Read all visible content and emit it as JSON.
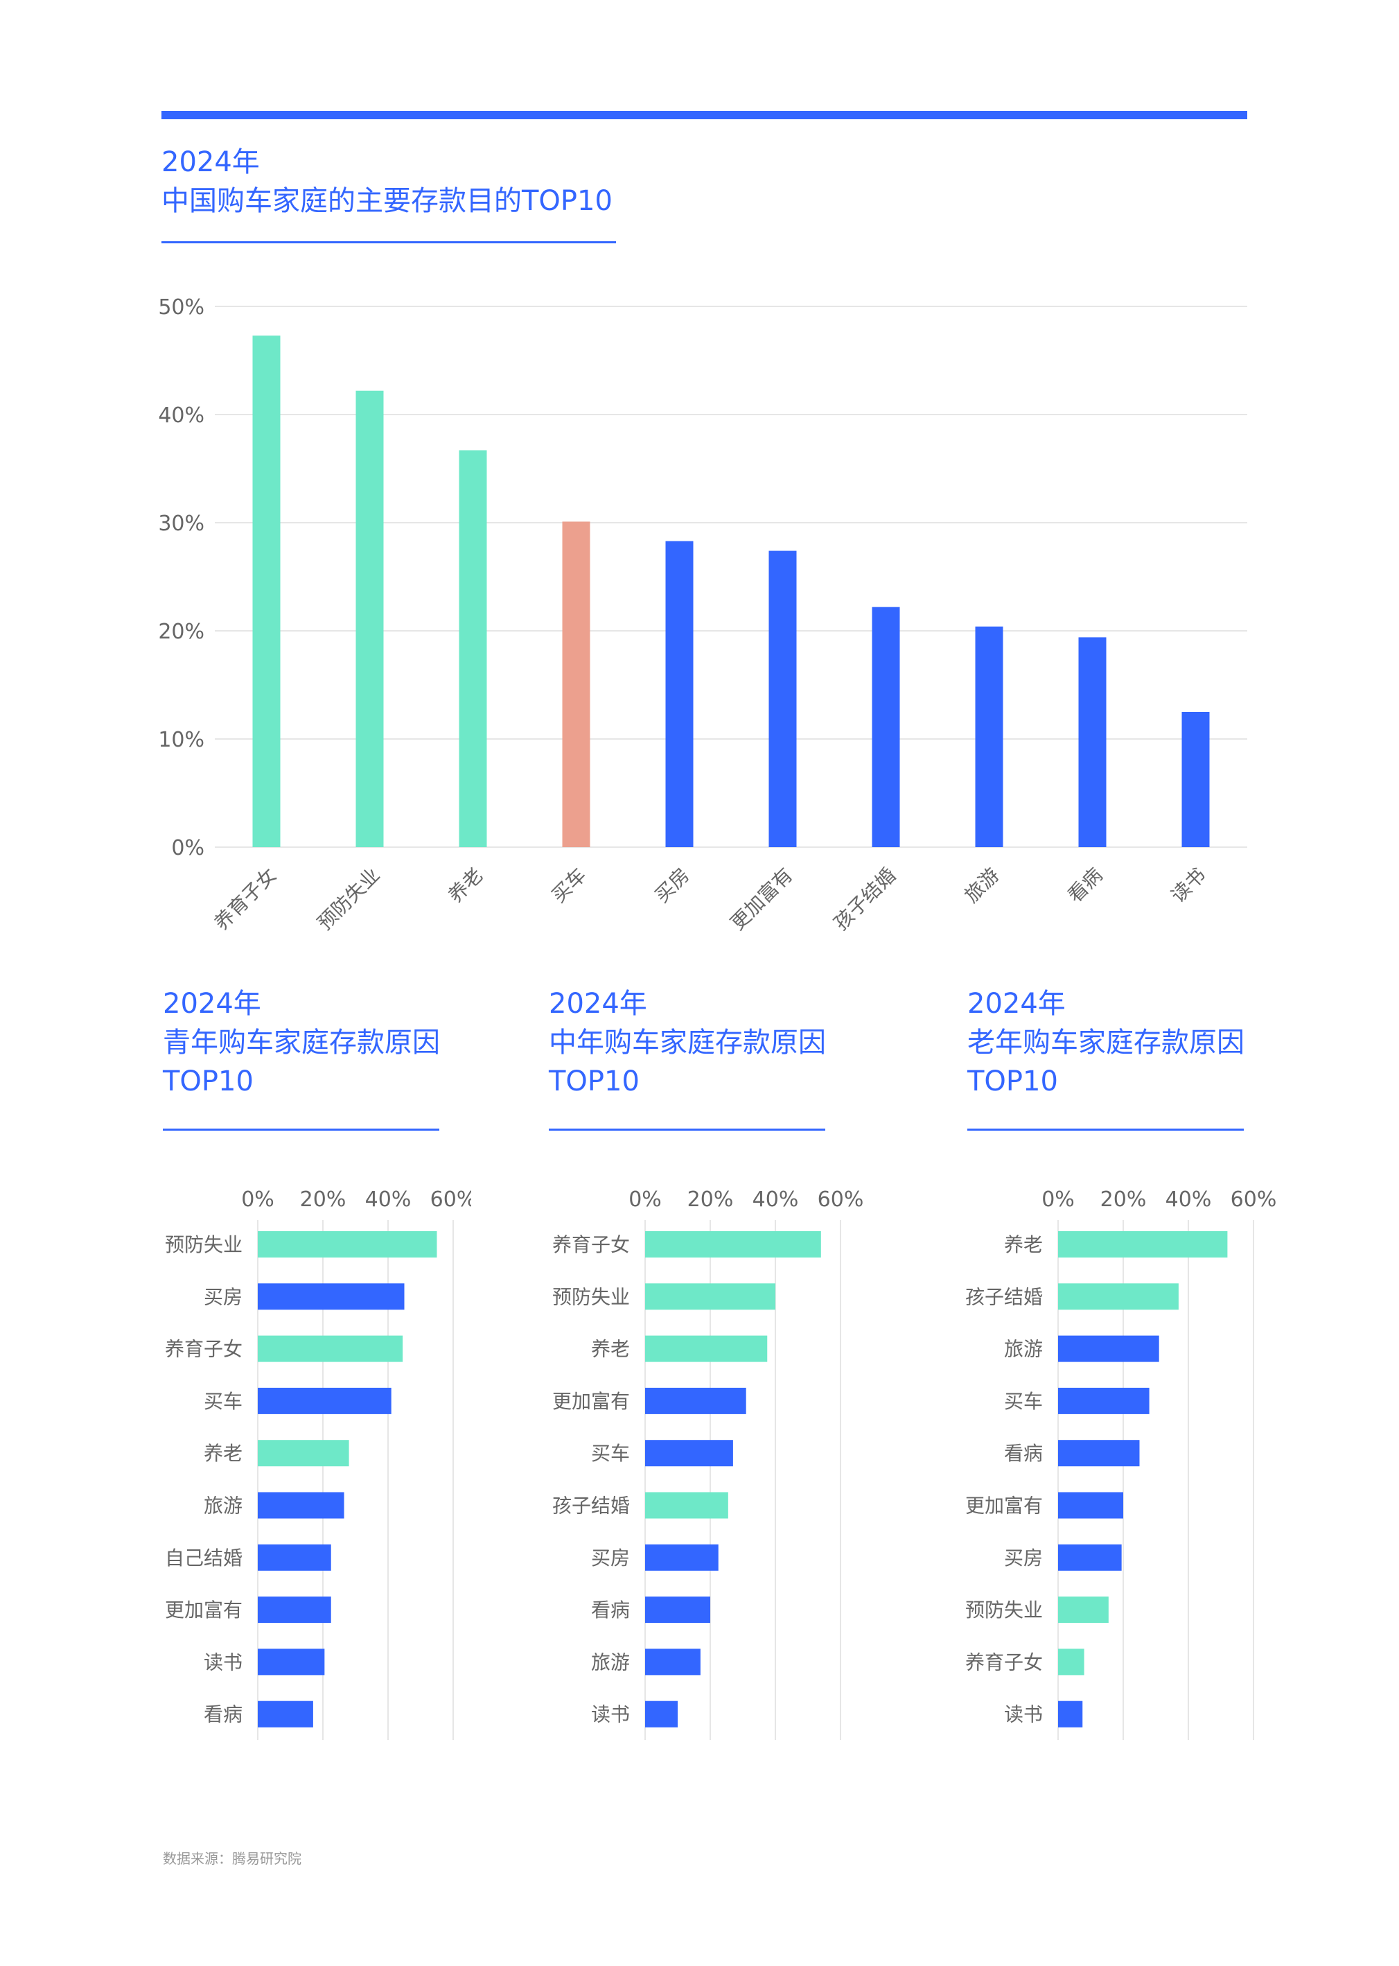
{
  "colors": {
    "accent": "#3366ff",
    "teal": "#6ee8c8",
    "salmon": "#eca08e",
    "blue": "#3366ff",
    "grid": "#e6e6e6",
    "tick": "#666666"
  },
  "main": {
    "title_line1": "2024年",
    "title_line2": "中国购车家庭的主要存款目的TOP10"
  },
  "panels": [
    {
      "line1": "2024年",
      "line2": "青年购车家庭存款原因",
      "line3": "TOP10"
    },
    {
      "line1": "2024年",
      "line2": "中年购车家庭存款原因",
      "line3": "TOP10"
    },
    {
      "line1": "2024年",
      "line2": "老年购车家庭存款原因",
      "line3": "TOP10"
    }
  ],
  "source": "数据来源：腾易研究院",
  "chart_data": [
    {
      "type": "bar",
      "categories": [
        "养育子女",
        "预防失业",
        "养老",
        "买车",
        "买房",
        "更加富有",
        "孩子结婚",
        "旅游",
        "看病",
        "读书"
      ],
      "values": [
        47.3,
        42.2,
        36.7,
        30.1,
        28.3,
        27.4,
        22.2,
        20.4,
        19.4,
        12.5
      ],
      "bar_colors": [
        "#6ee8c8",
        "#6ee8c8",
        "#6ee8c8",
        "#eca08e",
        "#3366ff",
        "#3366ff",
        "#3366ff",
        "#3366ff",
        "#3366ff",
        "#3366ff"
      ],
      "yticks": [
        "0%",
        "10%",
        "20%",
        "30%",
        "40%",
        "50%"
      ],
      "ylim": [
        0,
        50
      ],
      "grid": true
    },
    {
      "type": "bar",
      "orientation": "horizontal",
      "categories": [
        "预防失业",
        "买房",
        "养育子女",
        "买车",
        "养老",
        "旅游",
        "自己结婚",
        "更加富有",
        "读书",
        "看病"
      ],
      "values": [
        55,
        45,
        44.5,
        41,
        28,
        26.5,
        22.5,
        22.5,
        20.5,
        17
      ],
      "bar_colors": [
        "#6ee8c8",
        "#3366ff",
        "#6ee8c8",
        "#3366ff",
        "#6ee8c8",
        "#3366ff",
        "#3366ff",
        "#3366ff",
        "#3366ff",
        "#3366ff"
      ],
      "xticks": [
        "0%",
        "20%",
        "40%",
        "60%"
      ],
      "xlim": [
        0,
        60
      ],
      "grid": true
    },
    {
      "type": "bar",
      "orientation": "horizontal",
      "categories": [
        "养育子女",
        "预防失业",
        "养老",
        "更加富有",
        "买车",
        "孩子结婚",
        "买房",
        "看病",
        "旅游",
        "读书"
      ],
      "values": [
        54,
        40,
        37.5,
        31,
        27,
        25.5,
        22.5,
        20,
        17,
        10
      ],
      "bar_colors": [
        "#6ee8c8",
        "#6ee8c8",
        "#6ee8c8",
        "#3366ff",
        "#3366ff",
        "#6ee8c8",
        "#3366ff",
        "#3366ff",
        "#3366ff",
        "#3366ff"
      ],
      "xticks": [
        "0%",
        "20%",
        "40%",
        "60%"
      ],
      "xlim": [
        0,
        60
      ],
      "grid": true
    },
    {
      "type": "bar",
      "orientation": "horizontal",
      "categories": [
        "养老",
        "孩子结婚",
        "旅游",
        "买车",
        "看病",
        "更加富有",
        "买房",
        "预防失业",
        "养育子女",
        "读书"
      ],
      "values": [
        52,
        37,
        31,
        28,
        25,
        20,
        19.5,
        15.5,
        8,
        7.5
      ],
      "bar_colors": [
        "#6ee8c8",
        "#6ee8c8",
        "#3366ff",
        "#3366ff",
        "#3366ff",
        "#3366ff",
        "#3366ff",
        "#6ee8c8",
        "#6ee8c8",
        "#3366ff"
      ],
      "xticks": [
        "0%",
        "20%",
        "40%",
        "60%"
      ],
      "xlim": [
        0,
        60
      ],
      "grid": true
    }
  ]
}
